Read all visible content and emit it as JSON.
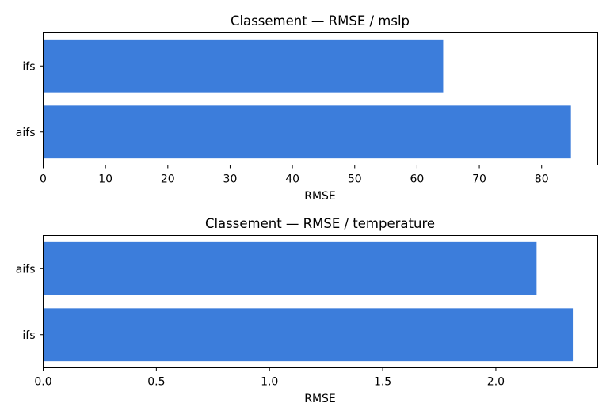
{
  "chart_data": [
    {
      "type": "bar",
      "orientation": "horizontal",
      "title": "Classement — RMSE / mslp",
      "xlabel": "RMSE",
      "ylabel": "",
      "categories": [
        "ifs",
        "aifs"
      ],
      "values": [
        64.2,
        84.7
      ],
      "xlim": [
        0,
        89
      ],
      "xticks": [
        0,
        10,
        20,
        30,
        40,
        50,
        60,
        70,
        80
      ],
      "xtick_labels": [
        "0",
        "10",
        "20",
        "30",
        "40",
        "50",
        "60",
        "70",
        "80"
      ],
      "bar_color": "#3c7ddb",
      "grid": false,
      "legend": "none"
    },
    {
      "type": "bar",
      "orientation": "horizontal",
      "title": "Classement — RMSE / temperature",
      "xlabel": "RMSE",
      "ylabel": "",
      "categories": [
        "aifs",
        "ifs"
      ],
      "values": [
        2.18,
        2.34
      ],
      "xlim": [
        0,
        2.45
      ],
      "xticks": [
        0,
        0.5,
        1.0,
        1.5,
        2.0
      ],
      "xtick_labels": [
        "0.0",
        "0.5",
        "1.0",
        "1.5",
        "2.0"
      ],
      "bar_color": "#3c7ddb",
      "grid": false,
      "legend": "none"
    }
  ]
}
